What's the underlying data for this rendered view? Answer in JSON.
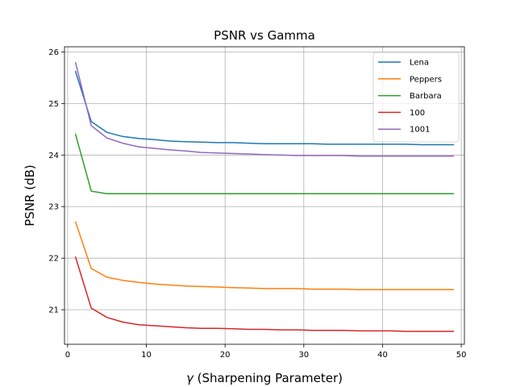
{
  "chart_data": {
    "type": "line",
    "title": "PSNR vs Gamma",
    "xlabel_symbol": "γ",
    "xlabel_text": " (Sharpening Parameter)",
    "ylabel": "PSNR (dB)",
    "xlim": [
      -0.4,
      50.4
    ],
    "ylim": [
      20.33,
      26.1
    ],
    "xticks": [
      0,
      10,
      20,
      30,
      40,
      50
    ],
    "yticks": [
      21,
      22,
      23,
      24,
      25,
      26
    ],
    "grid": true,
    "legend_position": "top-right",
    "x": [
      1,
      3,
      5,
      7,
      9,
      11,
      13,
      15,
      17,
      19,
      21,
      23,
      25,
      27,
      29,
      31,
      33,
      35,
      37,
      39,
      41,
      43,
      45,
      47,
      49
    ],
    "series": [
      {
        "name": "Lena",
        "color": "#1f77b4",
        "values": [
          25.62,
          24.65,
          24.44,
          24.36,
          24.32,
          24.3,
          24.27,
          24.26,
          24.25,
          24.24,
          24.24,
          24.23,
          24.22,
          24.22,
          24.22,
          24.22,
          24.21,
          24.21,
          24.21,
          24.21,
          24.21,
          24.21,
          24.2,
          24.2,
          24.2
        ]
      },
      {
        "name": "Peppers",
        "color": "#ff7f0e",
        "values": [
          22.7,
          21.8,
          21.63,
          21.57,
          21.53,
          21.5,
          21.48,
          21.46,
          21.45,
          21.44,
          21.43,
          21.42,
          21.41,
          21.41,
          21.41,
          21.4,
          21.4,
          21.4,
          21.39,
          21.39,
          21.39,
          21.39,
          21.39,
          21.39,
          21.39
        ]
      },
      {
        "name": "Barbara",
        "color": "#2ca02c",
        "values": [
          24.4,
          23.3,
          23.25,
          23.25,
          23.25,
          23.25,
          23.25,
          23.25,
          23.25,
          23.25,
          23.25,
          23.25,
          23.25,
          23.25,
          23.25,
          23.25,
          23.25,
          23.25,
          23.25,
          23.25,
          23.25,
          23.25,
          23.25,
          23.25,
          23.25
        ]
      },
      {
        "name": "100",
        "color": "#d62728",
        "values": [
          22.02,
          21.03,
          20.85,
          20.76,
          20.71,
          20.69,
          20.67,
          20.65,
          20.64,
          20.64,
          20.63,
          20.62,
          20.62,
          20.61,
          20.61,
          20.6,
          20.6,
          20.6,
          20.59,
          20.59,
          20.59,
          20.58,
          20.58,
          20.58,
          20.58
        ]
      },
      {
        "name": "1001",
        "color": "#9467bd",
        "values": [
          25.79,
          24.57,
          24.33,
          24.23,
          24.16,
          24.13,
          24.1,
          24.08,
          24.05,
          24.04,
          24.03,
          24.02,
          24.01,
          24.0,
          23.99,
          23.99,
          23.99,
          23.99,
          23.98,
          23.98,
          23.98,
          23.98,
          23.98,
          23.98,
          23.98
        ]
      }
    ]
  }
}
